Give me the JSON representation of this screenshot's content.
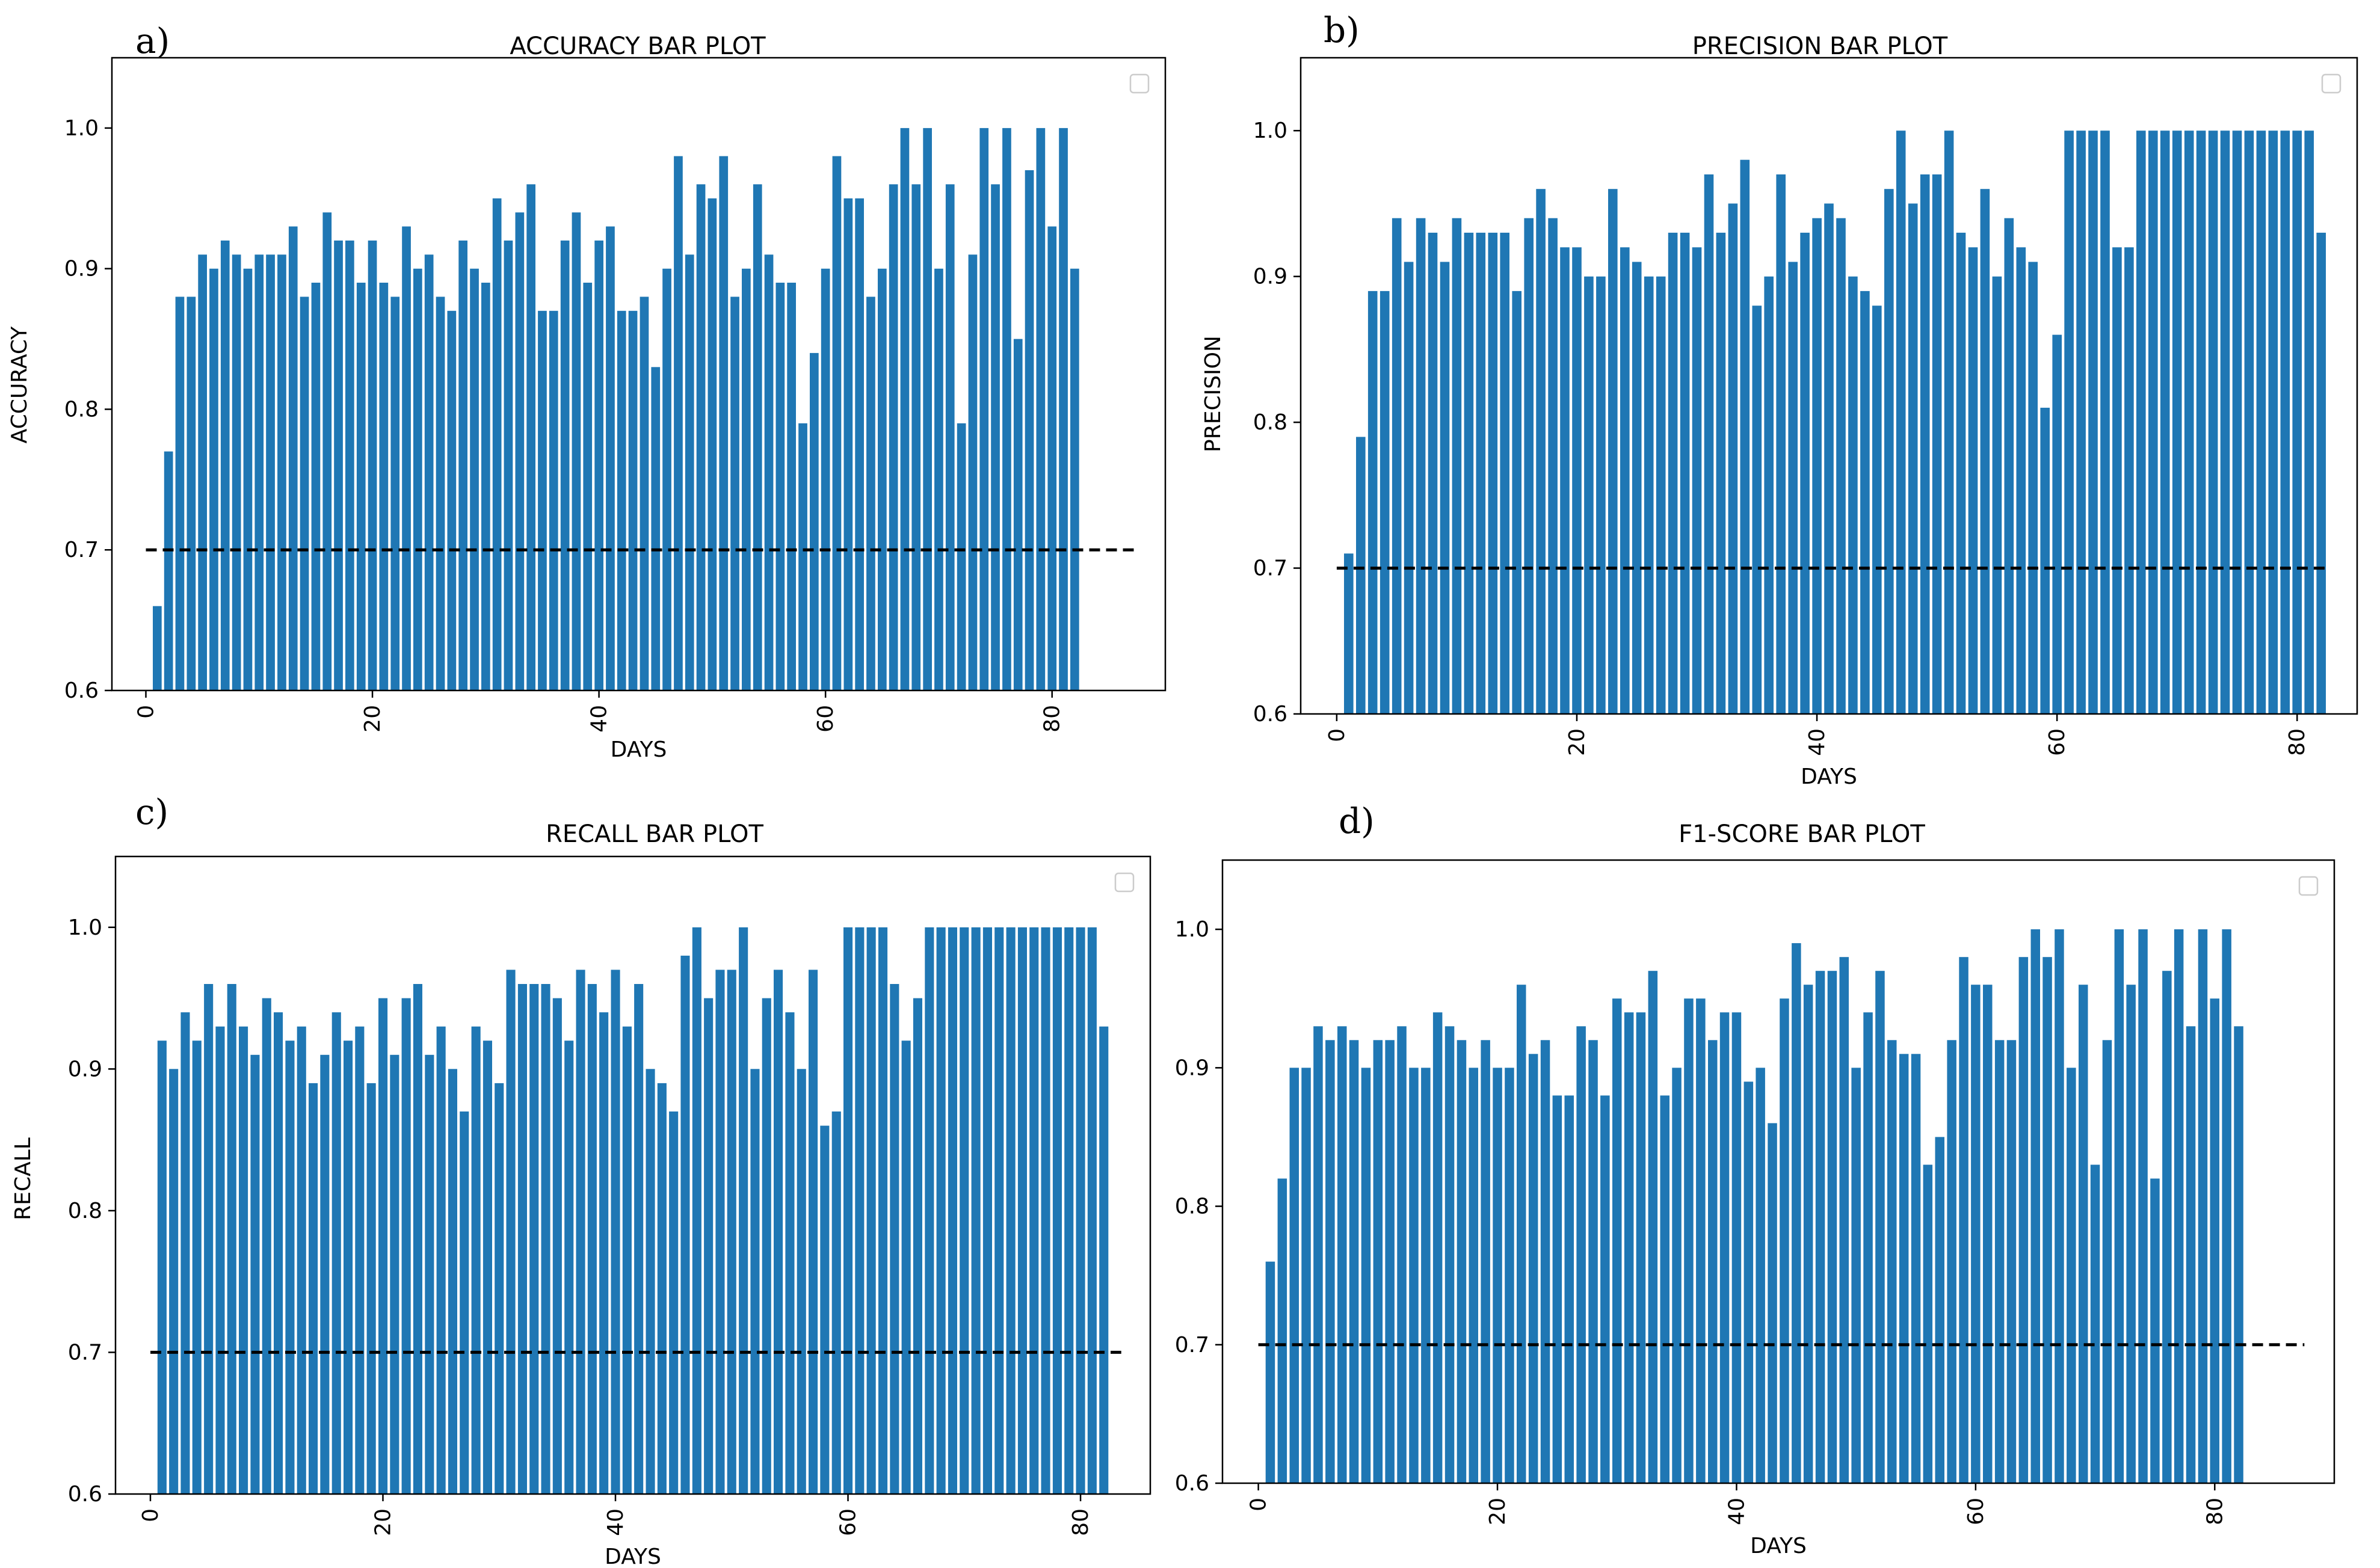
{
  "figure": {
    "baseline_color": "#000000",
    "bar_color": "#1f77b4",
    "axis_color": "#000000"
  },
  "chart_data": [
    {
      "type": "bar",
      "panel_label": "a)",
      "title": "ACCURACY BAR PLOT",
      "xlabel": "DAYS",
      "ylabel": "ACCURACY",
      "xlim": [
        -3,
        90
      ],
      "ylim": [
        0.6,
        1.05
      ],
      "xticks": [
        0,
        20,
        40,
        60,
        80
      ],
      "yticks": [
        0.6,
        0.7,
        0.8,
        0.9,
        1.0
      ],
      "ytick_labels": [
        "0.6",
        "0.7",
        "0.8",
        "0.9",
        "1.0"
      ],
      "reference_line": 0.7,
      "legend": "empty box, top-right",
      "x": [
        1,
        2,
        3,
        4,
        5,
        6,
        7,
        8,
        9,
        10,
        11,
        12,
        13,
        14,
        15,
        16,
        17,
        18,
        19,
        20,
        21,
        22,
        23,
        24,
        25,
        26,
        27,
        28,
        29,
        30,
        31,
        32,
        33,
        34,
        35,
        36,
        37,
        38,
        39,
        40,
        41,
        42,
        43,
        44,
        45,
        46,
        47,
        48,
        49,
        50,
        51,
        52,
        53,
        54,
        55,
        56,
        57,
        58,
        59,
        60,
        61,
        62,
        63,
        64,
        65,
        66,
        67,
        68,
        69,
        70,
        71,
        72,
        73,
        74,
        75,
        76,
        77,
        78,
        79,
        80,
        81,
        82
      ],
      "values": [
        0.66,
        0.77,
        0.88,
        0.88,
        0.91,
        0.9,
        0.92,
        0.91,
        0.9,
        0.91,
        0.91,
        0.91,
        0.93,
        0.88,
        0.89,
        0.94,
        0.92,
        0.92,
        0.89,
        0.92,
        0.89,
        0.88,
        0.93,
        0.9,
        0.91,
        0.88,
        0.87,
        0.92,
        0.9,
        0.89,
        0.95,
        0.92,
        0.94,
        0.96,
        0.87,
        0.87,
        0.92,
        0.94,
        0.89,
        0.92,
        0.93,
        0.87,
        0.87,
        0.88,
        0.83,
        0.9,
        0.98,
        0.91,
        0.96,
        0.95,
        0.98,
        0.88,
        0.9,
        0.96,
        0.91,
        0.89,
        0.89,
        0.79,
        0.84,
        0.9,
        0.98,
        0.95,
        0.95,
        0.88,
        0.9,
        0.96,
        1.0,
        0.96,
        1.0,
        0.9,
        0.96,
        0.79,
        0.91,
        1.0,
        0.96,
        1.0,
        0.85,
        0.97,
        1.0,
        0.93,
        1.0,
        0.9
      ]
    },
    {
      "type": "bar",
      "panel_label": "b)",
      "title": "PRECISION BAR PLOT",
      "xlabel": "DAYS",
      "ylabel": "PRECISION",
      "xlim": [
        -3,
        85
      ],
      "ylim": [
        0.6,
        1.05
      ],
      "xticks": [
        0,
        20,
        40,
        60,
        80
      ],
      "yticks": [
        0.6,
        0.7,
        0.8,
        0.9,
        1.0
      ],
      "ytick_labels": [
        "0.6",
        "0.7",
        "0.8",
        "0.9",
        "1.0"
      ],
      "reference_line": 0.7,
      "legend": "empty box, top-right",
      "x": [
        1,
        2,
        3,
        4,
        5,
        6,
        7,
        8,
        9,
        10,
        11,
        12,
        13,
        14,
        15,
        16,
        17,
        18,
        19,
        20,
        21,
        22,
        23,
        24,
        25,
        26,
        27,
        28,
        29,
        30,
        31,
        32,
        33,
        34,
        35,
        36,
        37,
        38,
        39,
        40,
        41,
        42,
        43,
        44,
        45,
        46,
        47,
        48,
        49,
        50,
        51,
        52,
        53,
        54,
        55,
        56,
        57,
        58,
        59,
        60,
        61,
        62,
        63,
        64,
        65,
        66,
        67,
        68,
        69,
        70,
        71,
        72,
        73,
        74,
        75,
        76,
        77,
        78,
        79,
        80,
        81,
        82
      ],
      "values": [
        0.71,
        0.79,
        0.89,
        0.89,
        0.94,
        0.91,
        0.94,
        0.93,
        0.91,
        0.94,
        0.93,
        0.93,
        0.93,
        0.93,
        0.89,
        0.94,
        0.96,
        0.94,
        0.92,
        0.92,
        0.9,
        0.9,
        0.96,
        0.92,
        0.91,
        0.9,
        0.9,
        0.93,
        0.93,
        0.92,
        0.97,
        0.93,
        0.95,
        0.98,
        0.88,
        0.9,
        0.97,
        0.91,
        0.93,
        0.94,
        0.95,
        0.94,
        0.9,
        0.89,
        0.88,
        0.96,
        1.0,
        0.95,
        0.97,
        0.97,
        1.0,
        0.93,
        0.92,
        0.96,
        0.9,
        0.94,
        0.92,
        0.91,
        0.81,
        0.86,
        1.0,
        1.0,
        1.0,
        1.0,
        0.92,
        0.92,
        1.0,
        1.0,
        1.0,
        1.0,
        1.0,
        1.0,
        1.0,
        1.0,
        1.0,
        1.0,
        1.0,
        1.0,
        1.0,
        1.0,
        1.0,
        0.93
      ]
    },
    {
      "type": "bar",
      "panel_label": "c)",
      "title": "RECALL BAR PLOT",
      "xlabel": "DAYS",
      "ylabel": "RECALL",
      "xlim": [
        -3,
        86
      ],
      "ylim": [
        0.6,
        1.05
      ],
      "xticks": [
        0,
        20,
        40,
        60,
        80
      ],
      "yticks": [
        0.6,
        0.7,
        0.8,
        0.9,
        1.0
      ],
      "ytick_labels": [
        "0.6",
        "0.7",
        "0.8",
        "0.9",
        "1.0"
      ],
      "reference_line": 0.7,
      "legend": "empty box, top-right",
      "x": [
        1,
        2,
        3,
        4,
        5,
        6,
        7,
        8,
        9,
        10,
        11,
        12,
        13,
        14,
        15,
        16,
        17,
        18,
        19,
        20,
        21,
        22,
        23,
        24,
        25,
        26,
        27,
        28,
        29,
        30,
        31,
        32,
        33,
        34,
        35,
        36,
        37,
        38,
        39,
        40,
        41,
        42,
        43,
        44,
        45,
        46,
        47,
        48,
        49,
        50,
        51,
        52,
        53,
        54,
        55,
        56,
        57,
        58,
        59,
        60,
        61,
        62,
        63,
        64,
        65,
        66,
        67,
        68,
        69,
        70,
        71,
        72,
        73,
        74,
        75,
        76,
        77,
        78,
        79,
        80,
        81,
        82
      ],
      "values": [
        0.92,
        0.9,
        0.94,
        0.92,
        0.96,
        0.93,
        0.96,
        0.93,
        0.91,
        0.95,
        0.94,
        0.92,
        0.93,
        0.89,
        0.91,
        0.94,
        0.92,
        0.93,
        0.89,
        0.95,
        0.91,
        0.95,
        0.96,
        0.91,
        0.93,
        0.9,
        0.87,
        0.93,
        0.92,
        0.89,
        0.97,
        0.96,
        0.96,
        0.96,
        0.95,
        0.92,
        0.97,
        0.96,
        0.94,
        0.97,
        0.93,
        0.96,
        0.9,
        0.89,
        0.87,
        0.98,
        1.0,
        0.95,
        0.97,
        0.97,
        1.0,
        0.9,
        0.95,
        0.97,
        0.94,
        0.9,
        0.97,
        0.86,
        0.87,
        1.0,
        1.0,
        1.0,
        1.0,
        0.96,
        0.92,
        0.95,
        1.0,
        1.0,
        1.0,
        1.0,
        1.0,
        1.0,
        1.0,
        1.0,
        1.0,
        1.0,
        1.0,
        1.0,
        1.0,
        1.0,
        1.0,
        0.93
      ]
    },
    {
      "type": "bar",
      "panel_label": "d)",
      "title": "F1-SCORE BAR PLOT",
      "xlabel": "DAYS",
      "ylabel": "",
      "xlim": [
        -3,
        90
      ],
      "ylim": [
        0.6,
        1.05
      ],
      "xticks": [
        0,
        20,
        40,
        60,
        80
      ],
      "yticks": [
        0.6,
        0.7,
        0.8,
        0.9,
        1.0
      ],
      "ytick_labels": [
        "0.6",
        "0.7",
        "0.8",
        "0.9",
        "1.0"
      ],
      "reference_line": 0.7,
      "legend": "empty box, top-right",
      "x": [
        1,
        2,
        3,
        4,
        5,
        6,
        7,
        8,
        9,
        10,
        11,
        12,
        13,
        14,
        15,
        16,
        17,
        18,
        19,
        20,
        21,
        22,
        23,
        24,
        25,
        26,
        27,
        28,
        29,
        30,
        31,
        32,
        33,
        34,
        35,
        36,
        37,
        38,
        39,
        40,
        41,
        42,
        43,
        44,
        45,
        46,
        47,
        48,
        49,
        50,
        51,
        52,
        53,
        54,
        55,
        56,
        57,
        58,
        59,
        60,
        61,
        62,
        63,
        64,
        65,
        66,
        67,
        68,
        69,
        70,
        71,
        72,
        73,
        74,
        75,
        76,
        77,
        78,
        79,
        80,
        81,
        82
      ],
      "values": [
        0.76,
        0.82,
        0.9,
        0.9,
        0.93,
        0.92,
        0.93,
        0.92,
        0.9,
        0.92,
        0.92,
        0.93,
        0.9,
        0.9,
        0.94,
        0.93,
        0.92,
        0.9,
        0.92,
        0.9,
        0.9,
        0.96,
        0.91,
        0.92,
        0.88,
        0.88,
        0.93,
        0.92,
        0.88,
        0.95,
        0.94,
        0.94,
        0.97,
        0.88,
        0.9,
        0.95,
        0.95,
        0.92,
        0.94,
        0.94,
        0.89,
        0.9,
        0.86,
        0.95,
        0.99,
        0.96,
        0.97,
        0.97,
        0.98,
        0.9,
        0.94,
        0.97,
        0.92,
        0.91,
        0.91,
        0.83,
        0.85,
        0.92,
        0.98,
        0.96,
        0.96,
        0.92,
        0.92,
        0.98,
        1.0,
        0.98,
        1.0,
        0.9,
        0.96,
        0.83,
        0.92,
        1.0,
        0.96,
        1.0,
        0.82,
        0.97,
        1.0,
        0.93,
        1.0,
        0.95,
        1.0,
        0.93
      ]
    }
  ]
}
